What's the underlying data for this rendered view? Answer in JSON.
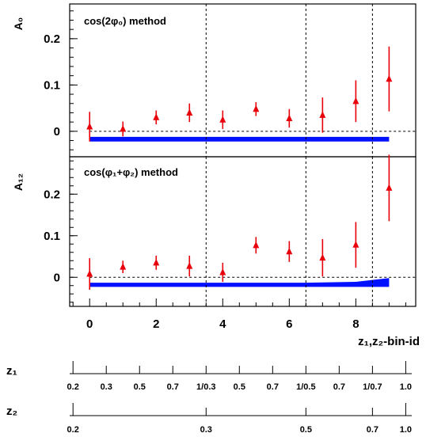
{
  "chart_data": [
    {
      "type": "scatter",
      "method_label": "cos(2φ₀) method",
      "ylabel": "A₀",
      "ylim": [
        -0.055,
        0.275
      ],
      "yticks": [
        0,
        0.1,
        0.2
      ],
      "ytick_labels": [
        "0",
        "0.1",
        "0.2"
      ],
      "x": [
        0,
        1,
        2,
        3,
        4,
        5,
        6,
        7,
        8,
        9
      ],
      "values": [
        0.01,
        0.005,
        0.03,
        0.04,
        0.025,
        0.048,
        0.028,
        0.035,
        0.065,
        0.113
      ],
      "errors": [
        0.032,
        0.016,
        0.015,
        0.02,
        0.02,
        0.015,
        0.02,
        0.038,
        0.045,
        0.07
      ],
      "systematic_band": {
        "x": [
          0,
          9
        ],
        "upper": [
          -0.012,
          -0.012
        ],
        "lower": [
          -0.022,
          -0.022
        ]
      },
      "zero_line": true,
      "marker_color": "#e8000b",
      "band_color": "#0011ff"
    },
    {
      "type": "scatter",
      "method_label": "cos(φ₁+φ₂) method",
      "ylabel": "A₁₂",
      "ylim": [
        -0.07,
        0.29
      ],
      "yticks": [
        0,
        0.1,
        0.2
      ],
      "ytick_labels": [
        "0",
        "0.1",
        "0.2"
      ],
      "x": [
        0,
        1,
        2,
        3,
        4,
        5,
        6,
        7,
        8,
        9
      ],
      "values": [
        0.008,
        0.025,
        0.035,
        0.027,
        0.012,
        0.077,
        0.062,
        0.047,
        0.078,
        0.215
      ],
      "errors": [
        0.038,
        0.015,
        0.017,
        0.025,
        0.023,
        0.02,
        0.025,
        0.045,
        0.055,
        0.08
      ],
      "systematic_band": {
        "x": [
          0,
          6.5,
          8,
          9
        ],
        "upper": [
          -0.013,
          -0.013,
          -0.011,
          -0.002
        ],
        "lower": [
          -0.023,
          -0.023,
          -0.023,
          -0.023
        ]
      },
      "zero_line": true,
      "marker_color": "#e8000b",
      "band_color": "#0011ff"
    }
  ],
  "x_axis": {
    "xlim": [
      -0.6,
      9.8
    ],
    "ticks": [
      0,
      2,
      4,
      6,
      8
    ],
    "tick_labels": [
      "0",
      "2",
      "4",
      "6",
      "8"
    ],
    "label": "z₁,z₂-bin-id",
    "dashed_lines_at": [
      3.5,
      6.5,
      8.5
    ]
  },
  "z1_scale": {
    "label": "z₁",
    "tick_labels": [
      "0.2",
      "0.3",
      "0.5",
      "0.7",
      "1/0.3",
      "0.5",
      "0.7",
      "1/0.5",
      "0.7",
      "1/0.7",
      "1.0"
    ]
  },
  "z2_scale": {
    "label": "z₂",
    "tick_labels": [
      "0.2",
      "0.3",
      "0.5",
      "0.7",
      "1.0"
    ]
  }
}
